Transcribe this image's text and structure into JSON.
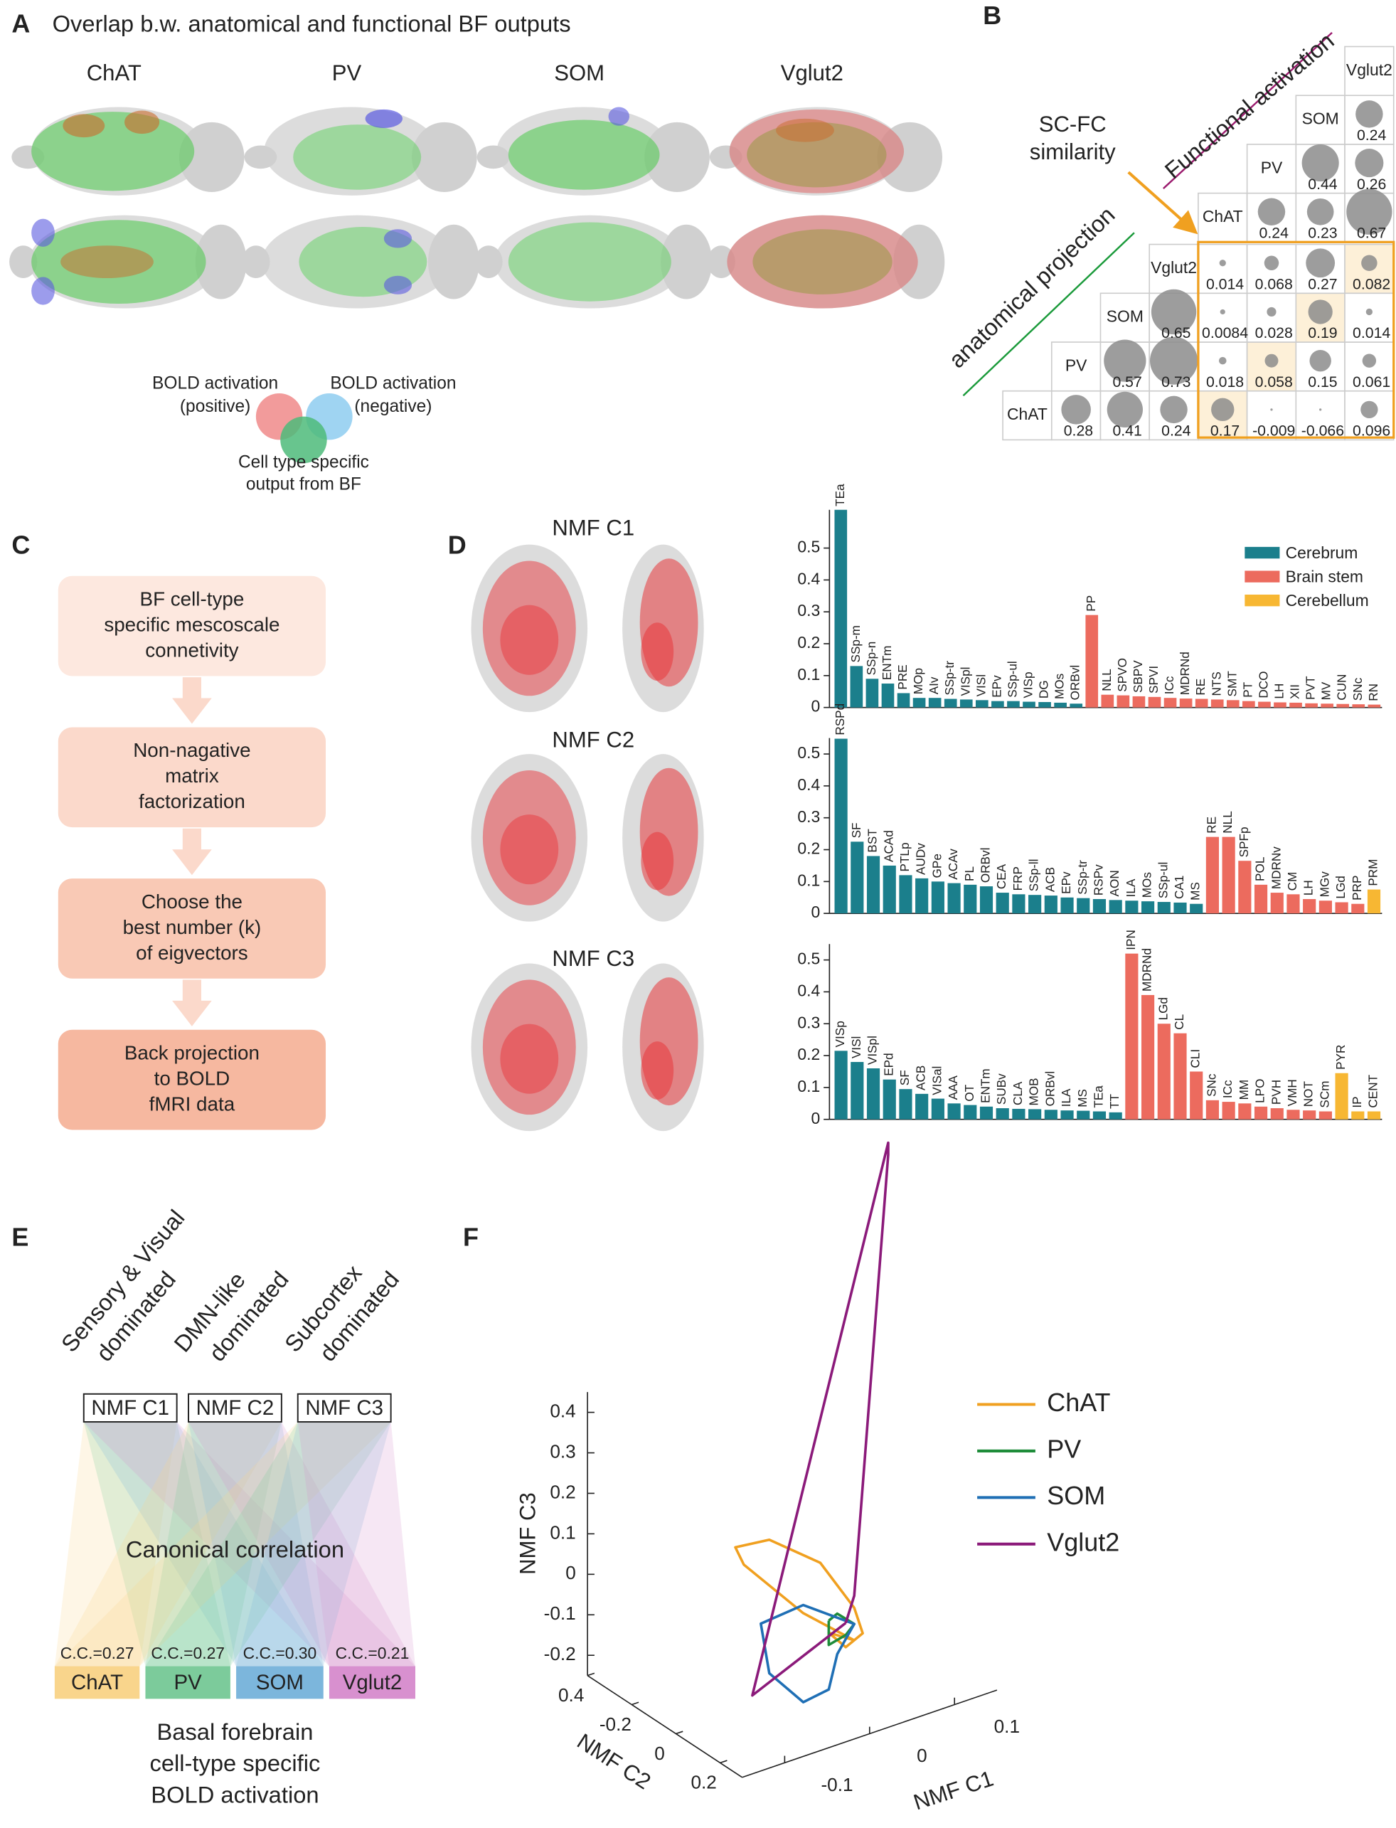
{
  "panel_a": {
    "letter": "A",
    "title": "Overlap b.w. anatomical and functional BF outputs",
    "cell_types": [
      "ChAT",
      "PV",
      "SOM",
      "Vglut2"
    ],
    "legend": {
      "positive": [
        "BOLD activation",
        "(positive)"
      ],
      "negative": [
        "BOLD activation",
        "(negative)"
      ],
      "output": [
        "Cell type specific",
        "output from BF"
      ]
    }
  },
  "panel_b": {
    "letter": "B",
    "functional_label": "Functional activation",
    "anatomical_label": "anatomical projection",
    "similarity_label": [
      "SC-FC",
      "similarity"
    ],
    "cell_types": [
      "ChAT",
      "PV",
      "SOM",
      "Vglut2"
    ],
    "functional": [
      [
        null,
        0.24,
        0.23,
        0.67
      ],
      [
        null,
        null,
        0.44,
        0.26
      ],
      [
        null,
        null,
        null,
        0.24
      ],
      [
        null,
        null,
        null,
        null
      ]
    ],
    "anatomical": [
      [
        null,
        0.28,
        0.41,
        0.24
      ],
      [
        null,
        null,
        0.57,
        0.73
      ],
      [
        null,
        null,
        null,
        0.65
      ],
      [
        null,
        null,
        null,
        null
      ]
    ],
    "sc_fc": [
      [
        0.17,
        -0.009,
        -0.066,
        0.096
      ],
      [
        0.018,
        0.058,
        0.15,
        0.061
      ],
      [
        0.0084,
        0.028,
        0.19,
        0.014
      ],
      [
        0.014,
        0.068,
        0.27,
        0.082
      ]
    ]
  },
  "panel_c": {
    "letter": "C",
    "steps": [
      [
        "BF cell-type",
        "specific mescoscale",
        "connetivity"
      ],
      [
        "Non-nagative",
        "matrix",
        "factorization"
      ],
      [
        "Choose the",
        "best number (k)",
        "of eigvectors"
      ],
      [
        "Back projection",
        "to BOLD",
        "fMRI data"
      ]
    ]
  },
  "panel_d": {
    "letter": "D",
    "legend": [
      {
        "name": "Cerebrum",
        "color": "#1b7f8c"
      },
      {
        "name": "Brain stem",
        "color": "#ec6b5e"
      },
      {
        "name": "Cerebellum",
        "color": "#f7b733"
      }
    ],
    "charts": [
      {
        "type": "bar",
        "title": "NMF C1",
        "ylim": [
          0,
          0.62
        ],
        "yticks": [
          0,
          0.1,
          0.2,
          0.3,
          0.4,
          0.5
        ],
        "groups": [
          {
            "categories": [
              "TEa",
              "SSp-m",
              "SSp-n",
              "ENTm",
              "PRE",
              "MOp",
              "AIv",
              "SSp-tr",
              "VISpl",
              "VISl",
              "EPv",
              "SSp-ul",
              "VISp",
              "DG",
              "MOs",
              "ORBvl"
            ],
            "values": [
              0.62,
              0.13,
              0.09,
              0.075,
              0.045,
              0.03,
              0.03,
              0.027,
              0.025,
              0.023,
              0.02,
              0.02,
              0.018,
              0.017,
              0.015,
              0.012
            ]
          },
          {
            "categories": [
              "PP",
              "NLL",
              "SPVO",
              "SBPV",
              "SPVI",
              "ICc",
              "MDRNd",
              "RE",
              "NTS",
              "SMT",
              "PT",
              "DCO",
              "LH",
              "XII",
              "PVT",
              "MV",
              "CUN",
              "SNc",
              "RN"
            ],
            "values": [
              0.29,
              0.04,
              0.038,
              0.035,
              0.033,
              0.03,
              0.028,
              0.027,
              0.025,
              0.023,
              0.02,
              0.018,
              0.016,
              0.015,
              0.013,
              0.012,
              0.011,
              0.01,
              0.009
            ]
          }
        ]
      },
      {
        "type": "bar",
        "title": "NMF C2",
        "ylim": [
          0,
          0.55
        ],
        "yticks": [
          0,
          0.1,
          0.2,
          0.3,
          0.4,
          0.5
        ],
        "groups": [
          {
            "categories": [
              "RSPd",
              "SF",
              "BST",
              "ACAd",
              "PTLp",
              "AUDv",
              "GPe",
              "ACAv",
              "PL",
              "ORBvl",
              "CEA",
              "FRP",
              "SSp-ll",
              "ACB",
              "EPv",
              "SSp-tr",
              "RSPv",
              "AON",
              "ILA",
              "MOs",
              "SSp-ul",
              "CA1",
              "MS"
            ],
            "values": [
              0.548,
              0.225,
              0.18,
              0.15,
              0.12,
              0.11,
              0.1,
              0.095,
              0.09,
              0.085,
              0.065,
              0.06,
              0.058,
              0.056,
              0.05,
              0.048,
              0.045,
              0.042,
              0.04,
              0.038,
              0.036,
              0.034,
              0.03
            ]
          },
          {
            "categories": [
              "RE",
              "NLL",
              "SPFp",
              "POL",
              "MDRNv",
              "CM",
              "LH",
              "MGv",
              "LGd",
              "PRP"
            ],
            "values": [
              0.24,
              0.24,
              0.165,
              0.09,
              0.065,
              0.06,
              0.045,
              0.04,
              0.035,
              0.03
            ]
          },
          {
            "categories": [
              "PRM"
            ],
            "values": [
              0.075
            ]
          }
        ]
      },
      {
        "type": "bar",
        "title": "NMF C3",
        "ylim": [
          0,
          0.55
        ],
        "yticks": [
          0,
          0.1,
          0.2,
          0.3,
          0.4,
          0.5
        ],
        "groups": [
          {
            "categories": [
              "VISp",
              "VISl",
              "VISpl",
              "EPd",
              "SF",
              "ACB",
              "VISal",
              "AAA",
              "OT",
              "ENTm",
              "SUBv",
              "CLA",
              "MOB",
              "ORBvl",
              "ILA",
              "MS",
              "TEa",
              "TT"
            ],
            "values": [
              0.215,
              0.18,
              0.16,
              0.125,
              0.095,
              0.08,
              0.065,
              0.05,
              0.045,
              0.04,
              0.035,
              0.033,
              0.032,
              0.03,
              0.028,
              0.027,
              0.025,
              0.022
            ]
          },
          {
            "categories": [
              "IPN",
              "MDRNd",
              "LGd",
              "CL",
              "CLI",
              "SNc",
              "ICc",
              "MM",
              "LPO",
              "PVH",
              "VMH",
              "NOT",
              "SCm"
            ],
            "values": [
              0.52,
              0.39,
              0.3,
              0.27,
              0.15,
              0.06,
              0.055,
              0.05,
              0.04,
              0.035,
              0.03,
              0.028,
              0.025
            ]
          },
          {
            "categories": [
              "PYR",
              "IP",
              "CENT"
            ],
            "values": [
              0.145,
              0.025,
              0.025
            ]
          }
        ]
      }
    ]
  },
  "panel_e": {
    "letter": "E",
    "headers": [
      [
        "Sensory & Visual",
        "dominated"
      ],
      [
        "DMN-like",
        "dominated"
      ],
      [
        "Subcortex",
        "dominated"
      ]
    ],
    "components": [
      "NMF C1",
      "NMF C2",
      "NMF C3"
    ],
    "center_label": "Canonical correlation",
    "cells": [
      {
        "name": "ChAT",
        "color": "#f9d58c",
        "cc": "C.C.=0.27"
      },
      {
        "name": "PV",
        "color": "#7ccb9b",
        "cc": "C.C.=0.27"
      },
      {
        "name": "SOM",
        "color": "#7cb6dc",
        "cc": "C.C.=0.30"
      },
      {
        "name": "Vglut2",
        "color": "#d890cf",
        "cc": "C.C.=0.21"
      }
    ],
    "footer": [
      "Basal forebrain",
      "cell-type specific",
      "BOLD activation"
    ]
  },
  "panel_f": {
    "letter": "F",
    "type": "line3d",
    "xlabel": "NMF C1",
    "ylabel": "NMF C2",
    "zlabel": "NMF C3",
    "xlim": [
      -0.15,
      0.15
    ],
    "ylim": [
      -0.4,
      0.3
    ],
    "zlim": [
      -0.25,
      0.45
    ],
    "xticks": [
      -0.1,
      0,
      0.1
    ],
    "yticks": [
      {
        "value": -0.4,
        "label": "0.4"
      },
      -0.2,
      0,
      0.2
    ],
    "zticks": [
      -0.2,
      -0.1,
      0,
      0.1,
      0.2,
      0.3,
      0.4
    ],
    "series": [
      {
        "name": "ChAT",
        "color": "#f0a020",
        "x": [
          0.06,
          0,
          -0.07,
          -0.08,
          -0.04,
          0.02,
          0.06,
          0.07,
          0.05,
          0.03,
          0.06
        ],
        "y": [
          0,
          0,
          0,
          0,
          0,
          0,
          0,
          0,
          0,
          0,
          0
        ],
        "z": [
          -0.17,
          -0.06,
          0.11,
          0.16,
          0.15,
          0.05,
          -0.09,
          -0.16,
          -0.18,
          -0.13,
          -0.17
        ]
      },
      {
        "name": "PV",
        "color": "#1e8c3a",
        "x": [
          0.03,
          0.04,
          0.06,
          0.05,
          0.03,
          0.03,
          0.03
        ],
        "y": [
          0,
          0,
          0,
          0,
          0,
          0,
          0
        ],
        "z": [
          -0.1,
          -0.09,
          -0.13,
          -0.15,
          -0.16,
          -0.12,
          -0.1
        ]
      },
      {
        "name": "SOM",
        "color": "#1f6fb5",
        "x": [
          0.04,
          0,
          -0.05,
          -0.04,
          0,
          0.03,
          0.04,
          0.06,
          0.04
        ],
        "y": [
          0,
          0,
          0,
          0,
          0,
          0,
          0,
          0,
          0
        ],
        "z": [
          -0.1,
          -0.04,
          -0.05,
          -0.18,
          -0.28,
          -0.27,
          -0.19,
          -0.13,
          -0.1
        ]
      },
      {
        "name": "Vglut2",
        "color": "#8b1a7a",
        "x": [
          0.05,
          -0.06,
          0.1,
          0.1,
          0.06,
          0.05
        ],
        "y": [
          0,
          0,
          0,
          0,
          0,
          0
        ],
        "z": [
          -0.12,
          -0.22,
          1.03,
          1.0,
          -0.06,
          -0.12
        ]
      }
    ]
  }
}
